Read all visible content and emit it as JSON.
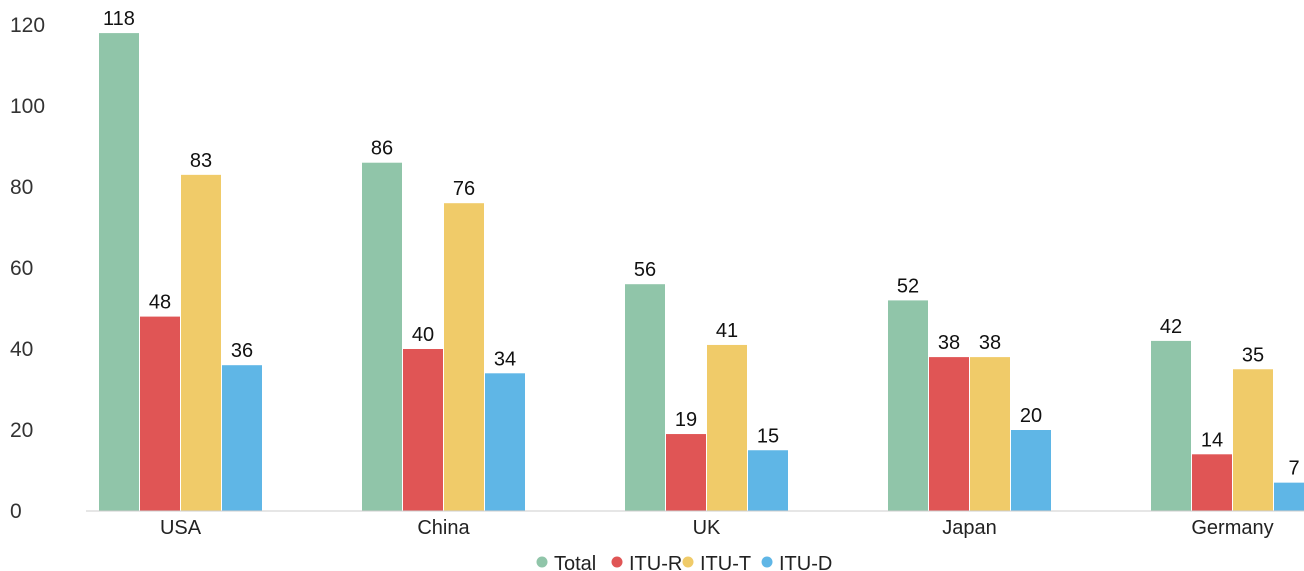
{
  "chart_data": {
    "type": "bar",
    "categories": [
      "USA",
      "China",
      "UK",
      "Japan",
      "Germany"
    ],
    "series": [
      {
        "name": "Total",
        "values": [
          118,
          86,
          56,
          52,
          42
        ],
        "color": "#90c5a9"
      },
      {
        "name": "ITU-R",
        "values": [
          48,
          40,
          19,
          38,
          14
        ],
        "color": "#e05555"
      },
      {
        "name": "ITU-T",
        "values": [
          83,
          76,
          41,
          38,
          35
        ],
        "color": "#f0cb69"
      },
      {
        "name": "ITU-D",
        "values": [
          36,
          34,
          15,
          20,
          7
        ],
        "color": "#5fb6e6"
      }
    ],
    "yticks": [
      "120",
      "100",
      "80",
      "60",
      "40",
      "20",
      "0"
    ],
    "ylim": [
      0,
      120
    ],
    "grid": false,
    "legend_position": "bottom-center",
    "title": "",
    "xlabel": "",
    "ylabel": ""
  }
}
